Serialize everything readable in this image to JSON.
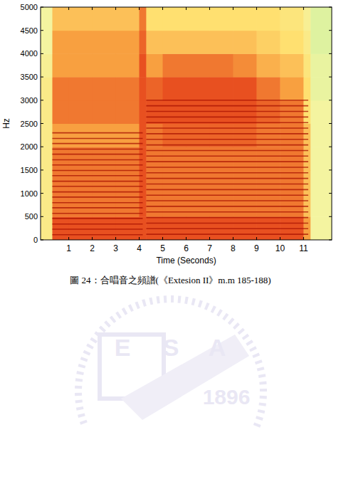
{
  "chart_data": {
    "type": "heatmap",
    "x_label": "Time (Seconds)",
    "y_label": "Hz",
    "xlim": [
      -0.2,
      12.2
    ],
    "ylim": [
      0,
      5000
    ],
    "xticks": [
      1,
      2,
      3,
      4,
      5,
      6,
      7,
      8,
      9,
      10,
      11
    ],
    "yticks": [
      0,
      500,
      1000,
      1500,
      2000,
      2500,
      3000,
      3500,
      4000,
      4500,
      5000
    ],
    "x_bins": [
      -0.2,
      0.3,
      1,
      2,
      3,
      4,
      4.3,
      5,
      6,
      7,
      8,
      9,
      10,
      11,
      11.3,
      12.2
    ],
    "y_bins": [
      0,
      500,
      1000,
      1500,
      2000,
      2500,
      3000,
      3500,
      4000,
      4500,
      5000
    ],
    "color_range": [
      0,
      10
    ],
    "cells": [
      [
        3,
        8,
        8,
        8,
        8,
        8,
        8,
        8,
        8,
        8,
        8,
        8,
        8,
        6,
        2
      ],
      [
        3,
        7,
        7,
        7,
        7,
        8,
        7,
        7,
        7,
        7,
        7,
        7,
        7,
        5,
        2
      ],
      [
        3,
        7,
        7,
        7,
        7,
        8,
        7,
        7,
        7,
        7,
        7,
        7,
        7,
        5,
        2
      ],
      [
        3,
        7,
        7,
        7,
        7,
        8,
        7,
        7,
        7,
        7,
        7,
        7,
        7,
        5,
        2
      ],
      [
        3,
        6,
        6,
        6,
        6,
        8,
        7,
        7.5,
        7.5,
        7.5,
        7.5,
        7,
        7,
        5,
        2
      ],
      [
        3,
        7,
        7,
        7,
        7,
        8,
        8,
        8,
        8,
        8,
        8,
        7.5,
        7,
        4,
        2
      ],
      [
        3,
        7,
        7,
        7,
        7,
        8,
        7.5,
        8,
        8,
        8,
        8,
        7,
        6,
        4,
        1.5
      ],
      [
        2.5,
        6,
        6,
        6,
        6,
        8,
        6,
        7,
        7,
        7,
        6.5,
        5.5,
        5,
        3.5,
        1.5
      ],
      [
        2,
        6,
        6,
        6,
        6,
        7.5,
        5,
        5,
        5,
        5,
        5,
        4.5,
        4,
        3,
        1
      ],
      [
        2,
        5,
        5,
        5,
        5,
        7,
        4,
        4,
        4,
        4,
        4,
        4,
        3.5,
        2.5,
        1
      ]
    ],
    "harmonics": [
      {
        "start": 0.3,
        "end": 4.15,
        "frequencies": [
          110,
          230,
          340,
          460,
          570,
          690,
          800,
          920,
          1030,
          1150,
          1260,
          1380,
          1490,
          1610,
          1720,
          1840,
          1950,
          2070,
          2180,
          2300
        ]
      },
      {
        "start": 4.3,
        "end": 11.2,
        "frequencies": [
          120,
          240,
          360,
          480,
          600,
          720,
          840,
          960,
          1080,
          1200,
          1320,
          1440,
          1560,
          1680,
          1800,
          1920,
          2040,
          2160,
          2280,
          2400,
          2520,
          2640,
          2760,
          2880,
          3000
        ]
      }
    ]
  },
  "caption": "圖 24：合唱音之頻譜(《Extesion II》m.m 185-188)",
  "watermark": {
    "letters": [
      "E",
      "S",
      "A"
    ],
    "year": "1896"
  }
}
